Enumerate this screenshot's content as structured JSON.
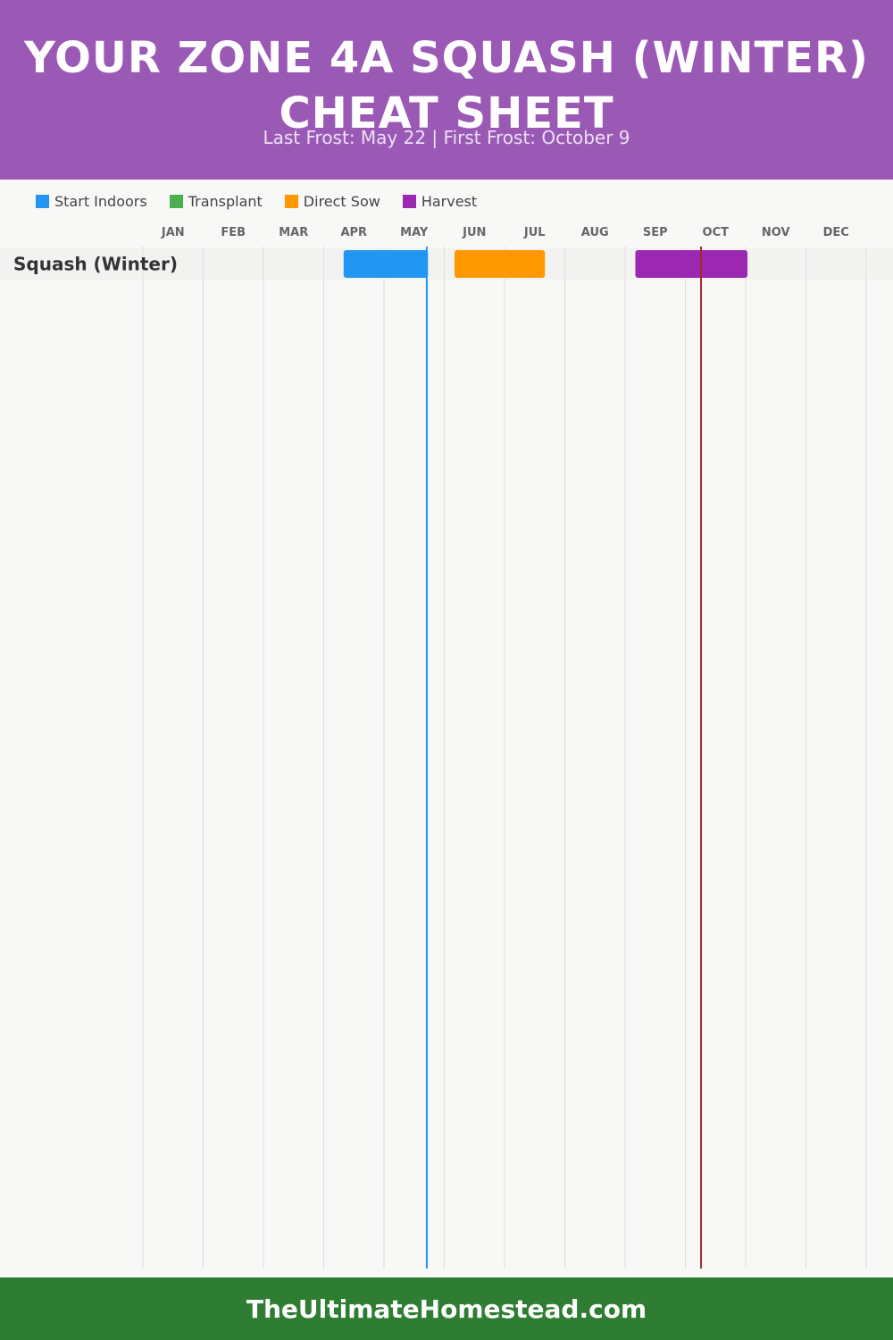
{
  "header": {
    "title": "YOUR ZONE 4A SQUASH (WINTER) CHEAT SHEET",
    "subtitle": "Last Frost: May 22 | First Frost: October 9",
    "background": "#9b59b6"
  },
  "legend": [
    {
      "label": "Start Indoors",
      "color": "#2196f3"
    },
    {
      "label": "Transplant",
      "color": "#4caf50"
    },
    {
      "label": "Direct Sow",
      "color": "#ff9800"
    },
    {
      "label": "Harvest",
      "color": "#9c27b0"
    }
  ],
  "chart_data": {
    "type": "gantt",
    "categories": [
      "JAN",
      "FEB",
      "MAR",
      "APR",
      "MAY",
      "JUN",
      "JUL",
      "AUG",
      "SEP",
      "OCT",
      "NOV",
      "DEC"
    ],
    "xlim": [
      0,
      12
    ],
    "grid": true,
    "rows": [
      {
        "name": "Squash (Winter)",
        "bars": [
          {
            "phase": "Start Indoors",
            "start": 3.33,
            "end": 4.73,
            "color": "#2196f3"
          },
          {
            "phase": "Direct Sow",
            "start": 5.17,
            "end": 6.67,
            "color": "#ff9800"
          },
          {
            "phase": "Harvest",
            "start": 8.17,
            "end": 10.03,
            "color": "#9c27b0"
          }
        ]
      }
    ],
    "markers": [
      {
        "name": "Last Frost",
        "date": "May 22",
        "value": 4.71,
        "color": "#2196f3"
      },
      {
        "name": "First Frost",
        "date": "October 9",
        "value": 9.26,
        "color": "#a52a2a"
      }
    ]
  },
  "footer": {
    "text": "TheUltimateHomestead.com",
    "background": "#2e7d32"
  }
}
